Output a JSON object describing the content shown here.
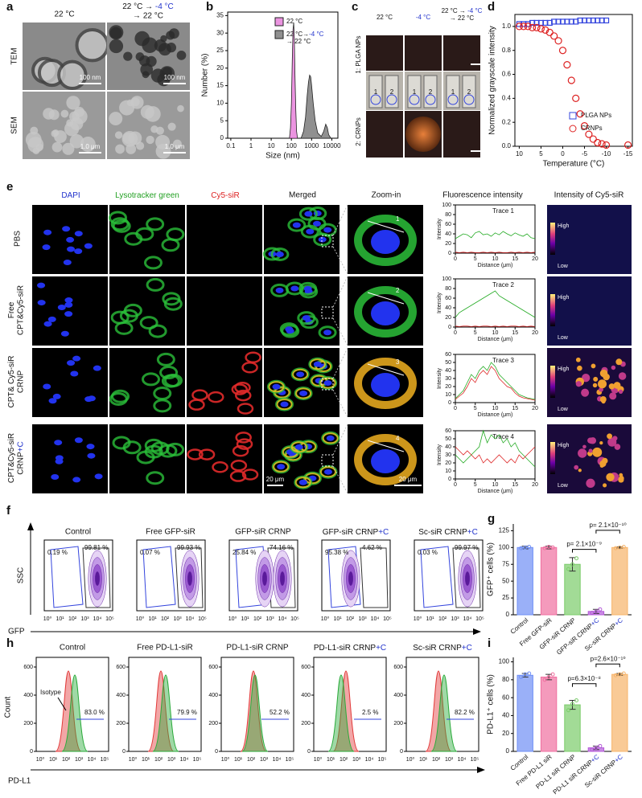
{
  "figure": {
    "panel_labels": [
      "a",
      "b",
      "c",
      "d",
      "e",
      "f",
      "g",
      "h",
      "i"
    ],
    "a": {
      "columns": [
        "22 °C",
        [
          [
            "22 °C → ",
            {
              "text": "-4 °C",
              "color": "#2233cc"
            }
          ],
          [
            "→ 22 °C"
          ]
        ]
      ],
      "rows": [
        "TEM",
        "SEM"
      ],
      "scale_bars": [
        "100 nm",
        "100 nm",
        "1.0 μm",
        "1.0 μm"
      ]
    },
    "c": {
      "columns": [
        "22 °C",
        {
          "text": "-4 °C",
          "color": "#2233cc"
        },
        [
          [
            "22 °C → ",
            {
              "text": "-4 °C",
              "color": "#2233cc"
            }
          ],
          [
            "→ 22 °C"
          ]
        ]
      ],
      "rows": [
        "1: PLGA NPs",
        "2: CRNPs"
      ],
      "vial_labels": [
        "1",
        "2",
        "1",
        "2",
        "1",
        "2"
      ]
    },
    "e": {
      "columns": [
        {
          "text": "DAPI",
          "color": "#2233cc"
        },
        {
          "text": "Lysotracker green",
          "color": "#22a022"
        },
        {
          "text": "Cy5-siR",
          "color": "#dd2222"
        },
        "Merged",
        "Zoom-in",
        "Fluorescence intensity",
        "Intensity of Cy5-siR"
      ],
      "rows": [
        "PBS",
        [
          [
            "Free"
          ],
          [
            "CPT&Cy5-siR"
          ]
        ],
        [
          [
            "CPT& Cy5-siR"
          ],
          [
            "CRNP"
          ]
        ],
        [
          [
            "CPT&Cy5-siR"
          ],
          [
            "CRNP",
            {
              "text": "+C",
              "color": "#2233cc"
            }
          ]
        ]
      ],
      "zoom_numbers": [
        "1",
        "2",
        "3",
        "4"
      ],
      "scale_bars": [
        "20 μm",
        "20 μm"
      ],
      "colorbar": [
        "High",
        "Low"
      ]
    },
    "f": {
      "titles": [
        "Control",
        "Free GFP-siR",
        "GFP-siR CRNP",
        [
          "GFP-siR CRNP",
          {
            "text": "+C",
            "color": "#2233cc"
          }
        ],
        [
          "Sc-siR CRNP",
          {
            "text": "+C",
            "color": "#2233cc"
          }
        ]
      ],
      "gates": [
        [
          "0.19 %",
          "99.81 %"
        ],
        [
          "0.07 %",
          "99.93 %"
        ],
        [
          "25.84 %",
          "74.16 %"
        ],
        [
          "95.38 %",
          "4.62 %"
        ],
        [
          "0.03 %",
          "99.97 %"
        ]
      ],
      "y_label": "SSC",
      "x_label": "GFP",
      "x_ticks": [
        "10⁰",
        "10¹",
        "10²",
        "10³",
        "10⁴",
        "10⁵"
      ]
    },
    "h": {
      "titles": [
        "Control",
        "Free PD-L1-siR",
        "PD-L1-siR CRNP",
        [
          "PD-L1-siR CRNP",
          {
            "text": "+C",
            "color": "#2233cc"
          }
        ],
        [
          "Sc-siR CRNP",
          {
            "text": "+C",
            "color": "#2233cc"
          }
        ]
      ],
      "percents": [
        "83.0 %",
        "79.9 %",
        "52.2 %",
        "2.5 %",
        "82.2 %"
      ],
      "isotype": "Isotype",
      "y_label": "Count",
      "y_ticks": [
        0,
        200,
        400,
        600
      ],
      "x_label": "PD-L1",
      "x_ticks": [
        "10⁰",
        "10¹",
        "10²",
        "10³",
        "10⁴",
        "10⁵"
      ]
    }
  },
  "chart_data": [
    {
      "type": "area",
      "x_label": "Size (nm)",
      "y_label": "Number (%)",
      "xscale": "log",
      "xlim": [
        0.07,
        20000
      ],
      "ylim": [
        0,
        36
      ],
      "xticks": [
        0.1,
        1,
        10,
        100,
        1000,
        10000
      ],
      "yticks": [
        0,
        5,
        10,
        15,
        20,
        25,
        30,
        35
      ],
      "legend": "upper right",
      "series": [
        {
          "name": "22 °C",
          "color": "#e05ad0",
          "x": [
            80,
            90,
            100,
            110,
            120,
            130,
            140,
            150,
            165,
            180,
            200
          ],
          "values": [
            0,
            3,
            10,
            22,
            31,
            33,
            28,
            18,
            8,
            2,
            0
          ]
        },
        {
          "name": [
            [
              "22 °C→",
              {
                "text": "-4 °C",
                "color": "#2233cc"
              }
            ],
            [
              "→ 22 °C"
            ]
          ],
          "color": "#555555",
          "x": [
            300,
            400,
            500,
            600,
            700,
            800,
            900,
            1000,
            1200,
            1500,
            2000,
            3000,
            4000,
            5000,
            6000,
            7000,
            9000
          ],
          "values": [
            0,
            2,
            6,
            12,
            16,
            18,
            17.5,
            15,
            10,
            5,
            1.5,
            0.5,
            2,
            4,
            3,
            1,
            0
          ]
        }
      ]
    },
    {
      "type": "scatter",
      "x_label": "Temperature (°C)",
      "y_label": "Normalized grayscale intensity",
      "xlim": [
        11,
        -16
      ],
      "ylim": [
        0,
        1.1
      ],
      "xticks": [
        10,
        5,
        0,
        -5,
        -10,
        -15
      ],
      "yticks": [
        {
          "value": 0,
          "label": "0.0"
        },
        {
          "value": 0.2,
          "label": "0.2"
        },
        {
          "value": 0.4,
          "label": "0.4"
        },
        {
          "value": 0.6,
          "label": "0.6"
        },
        {
          "value": 0.8,
          "label": "0.8"
        },
        {
          "value": 1,
          "label": "1.0"
        }
      ],
      "legend": "lower right",
      "series": [
        {
          "name": "PLGA NPs",
          "color": "#3344dd",
          "marker": "square",
          "x": [
            10,
            9,
            8,
            7,
            6,
            5,
            4,
            3,
            2,
            1,
            0,
            -1,
            -2,
            -3,
            -4,
            -5,
            -6,
            -7,
            -8,
            -9,
            -10
          ],
          "values": [
            1.02,
            1.02,
            1.02,
            1.03,
            1.03,
            1.03,
            1.03,
            1.03,
            1.04,
            1.04,
            1.04,
            1.04,
            1.04,
            1.04,
            1.05,
            1.05,
            1.05,
            1.05,
            1.05,
            1.05,
            1.05
          ]
        },
        {
          "name": "CRNPs",
          "color": "#dd2222",
          "marker": "circle",
          "x": [
            10,
            9,
            8,
            7,
            6,
            5,
            4,
            3,
            2,
            1,
            0,
            -1,
            -2,
            -3,
            -4,
            -5,
            -6,
            -7,
            -8,
            -9,
            -10,
            -15
          ],
          "values": [
            1.0,
            1.0,
            1.0,
            0.99,
            0.99,
            0.98,
            0.97,
            0.95,
            0.92,
            0.88,
            0.8,
            0.68,
            0.55,
            0.4,
            0.27,
            0.17,
            0.1,
            0.06,
            0.03,
            0.02,
            0.01,
            0.01
          ]
        }
      ]
    },
    {
      "type": "line",
      "title": "Trace 1",
      "x_label": "Distance (μm)",
      "y_label": "Intensity",
      "xlim": [
        0,
        20
      ],
      "ylim": [
        0,
        100
      ],
      "xticks": [
        0,
        5,
        10,
        15,
        20
      ],
      "yticks": [
        0,
        20,
        40,
        60,
        80,
        100
      ],
      "x": [
        0,
        1,
        2,
        3,
        4,
        5,
        6,
        7,
        8,
        9,
        10,
        11,
        12,
        13,
        14,
        15,
        16,
        17,
        18,
        19,
        20
      ],
      "series": [
        {
          "color": "#22aa22",
          "values": [
            30,
            35,
            40,
            38,
            32,
            42,
            45,
            38,
            40,
            35,
            42,
            38,
            45,
            40,
            36,
            42,
            38,
            35,
            40,
            32,
            30
          ]
        },
        {
          "color": "#dd2222",
          "values": [
            2,
            1,
            2,
            1,
            2,
            1,
            1,
            2,
            1,
            2,
            1,
            2,
            1,
            1,
            2,
            1,
            2,
            1,
            2,
            1,
            2
          ]
        }
      ]
    },
    {
      "type": "line",
      "title": "Trace 2",
      "x_label": "Distance (μm)",
      "y_label": "Intensity",
      "xlim": [
        0,
        20
      ],
      "ylim": [
        0,
        100
      ],
      "xticks": [
        0,
        5,
        10,
        15,
        20
      ],
      "yticks": [
        0,
        20,
        40,
        60,
        80,
        100
      ],
      "x": [
        0,
        1,
        2,
        3,
        4,
        5,
        6,
        7,
        8,
        9,
        10,
        11,
        12,
        13,
        14,
        15,
        16,
        17,
        18,
        19,
        20
      ],
      "series": [
        {
          "color": "#22aa22",
          "values": [
            20,
            30,
            35,
            40,
            45,
            50,
            55,
            60,
            65,
            70,
            75,
            65,
            60,
            55,
            50,
            45,
            40,
            35,
            30,
            25,
            20
          ]
        },
        {
          "color": "#dd2222",
          "values": [
            2,
            1,
            2,
            2,
            1,
            2,
            1,
            2,
            2,
            1,
            2,
            1,
            2,
            1,
            2,
            2,
            1,
            2,
            1,
            2,
            1
          ]
        }
      ]
    },
    {
      "type": "line",
      "title": "Trace 3",
      "x_label": "Distance (μm)",
      "y_label": "Intensity",
      "xlim": [
        0,
        20
      ],
      "ylim": [
        0,
        60
      ],
      "xticks": [
        0,
        5,
        10,
        15,
        20
      ],
      "yticks": [
        0,
        10,
        20,
        30,
        40,
        50,
        60
      ],
      "x": [
        0,
        1,
        2,
        3,
        4,
        5,
        6,
        7,
        8,
        9,
        10,
        11,
        12,
        13,
        14,
        15,
        16,
        17,
        18,
        19,
        20
      ],
      "series": [
        {
          "color": "#22aa22",
          "values": [
            5,
            10,
            15,
            25,
            35,
            30,
            40,
            45,
            40,
            50,
            45,
            35,
            30,
            25,
            20,
            15,
            10,
            8,
            6,
            5,
            4
          ]
        },
        {
          "color": "#dd2222",
          "values": [
            4,
            8,
            12,
            20,
            30,
            25,
            35,
            40,
            35,
            45,
            40,
            30,
            25,
            20,
            18,
            12,
            8,
            6,
            5,
            4,
            3
          ]
        }
      ]
    },
    {
      "type": "line",
      "title": "Trace 4",
      "x_label": "Distance (μm)",
      "y_label": "Intensity",
      "xlim": [
        0,
        20
      ],
      "ylim": [
        0,
        60
      ],
      "xticks": [
        0,
        5,
        10,
        15,
        20
      ],
      "yticks": [
        0,
        10,
        20,
        30,
        40,
        50,
        60
      ],
      "x": [
        0,
        1,
        2,
        3,
        4,
        5,
        6,
        7,
        8,
        9,
        10,
        11,
        12,
        13,
        14,
        15,
        16,
        17,
        18,
        19,
        20
      ],
      "series": [
        {
          "color": "#22aa22",
          "values": [
            30,
            25,
            20,
            25,
            30,
            35,
            40,
            60,
            45,
            55,
            50,
            55,
            45,
            50,
            40,
            45,
            35,
            30,
            25,
            20,
            15
          ]
        },
        {
          "color": "#dd2222",
          "values": [
            40,
            35,
            30,
            35,
            30,
            25,
            30,
            20,
            25,
            20,
            25,
            30,
            25,
            20,
            25,
            20,
            30,
            25,
            30,
            35,
            40
          ]
        }
      ]
    },
    {
      "type": "bar",
      "y_label": "GFP⁺ cells (%)",
      "ylim": [
        0,
        135
      ],
      "yticks": [
        0,
        25,
        50,
        75,
        100,
        125
      ],
      "categories": [
        "Control",
        "Free GFP-siR",
        "GFP-siR CRNP",
        [
          "GFP-siR CRNP",
          {
            "text": "+C",
            "color": "#2233cc"
          }
        ],
        [
          "Sc-siR CRNP",
          {
            "text": "+C",
            "color": "#2233cc"
          }
        ]
      ],
      "values": [
        100,
        100,
        75,
        5,
        100
      ],
      "errors": [
        2,
        2,
        10,
        3,
        1
      ],
      "points": [
        [
          99,
          100,
          101
        ],
        [
          99,
          101,
          100
        ],
        [
          68,
          75,
          84
        ],
        [
          3,
          5,
          8
        ],
        [
          99,
          100,
          101
        ]
      ],
      "colors": [
        "#6f8ff5",
        "#f06fa0",
        "#7bcc6a",
        "#b45ad8",
        "#f7b46a"
      ],
      "annotations": [
        "p= 2.1×10⁻⁹",
        "p= 2.1×10⁻¹⁰"
      ]
    },
    {
      "type": "bar",
      "y_label": "PD-L1⁺ cells (%)",
      "ylim": [
        0,
        105
      ],
      "yticks": [
        0,
        20,
        40,
        60,
        80,
        100
      ],
      "categories": [
        "Control",
        "Free PD-L1 siR",
        "PD-L1 siR CRNP",
        [
          "PD-L1 siR CRNP",
          {
            "text": "+C",
            "color": "#2233cc"
          }
        ],
        [
          "Sc-siR CRNP",
          {
            "text": "+C",
            "color": "#2233cc"
          }
        ]
      ],
      "values": [
        85,
        83,
        52,
        4,
        86
      ],
      "errors": [
        2,
        3,
        5,
        2,
        1
      ],
      "points": [
        [
          83,
          86,
          87
        ],
        [
          80,
          83,
          86
        ],
        [
          46,
          53,
          57
        ],
        [
          2,
          4,
          6
        ],
        [
          85,
          86,
          87
        ]
      ],
      "colors": [
        "#6f8ff5",
        "#f06fa0",
        "#7bcc6a",
        "#b45ad8",
        "#f7b46a"
      ],
      "annotations": [
        "p=6.3×10⁻⁸",
        "p=2.6×10⁻¹⁰"
      ]
    }
  ]
}
